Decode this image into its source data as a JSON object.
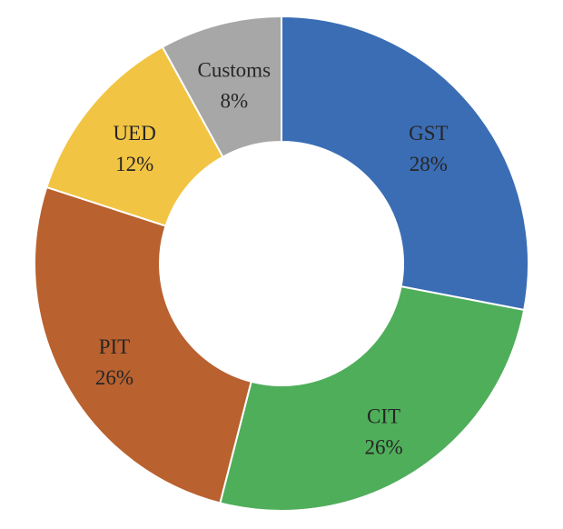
{
  "chart_data": {
    "type": "pie",
    "variant": "donut",
    "title": "",
    "start": "12 o'clock, clockwise",
    "slices": [
      {
        "label": "GST",
        "value": 28,
        "display": "28%",
        "color": "#3B6DB5"
      },
      {
        "label": "CIT",
        "value": 26,
        "display": "26%",
        "color": "#4FAE5A"
      },
      {
        "label": "PIT",
        "value": 26,
        "display": "26%",
        "color": "#B9612F"
      },
      {
        "label": "UED",
        "value": 12,
        "display": "12%",
        "color": "#F2C443"
      },
      {
        "label": "Customs",
        "value": 8,
        "display": "8%",
        "color": "#A7A7A7"
      }
    ]
  }
}
